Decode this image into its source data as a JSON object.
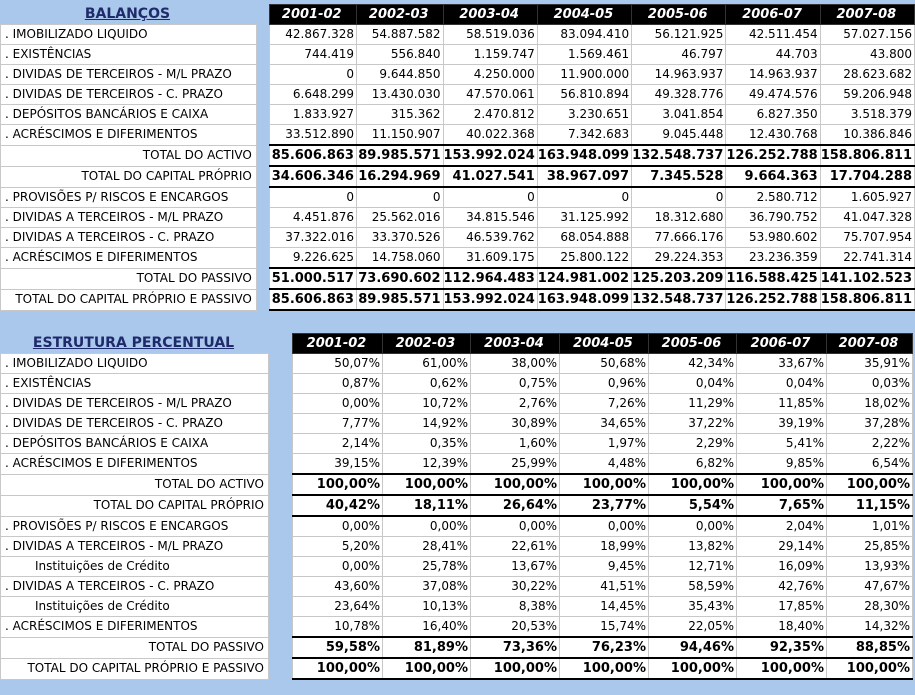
{
  "balancos": {
    "title": "BALANÇOS",
    "years": [
      "2001-02",
      "2002-03",
      "2003-04",
      "2004-05",
      "2005-06",
      "2006-07",
      "2007-08"
    ],
    "rows": [
      {
        "label": ". IMOBILIZADO LIQUIDO",
        "values": [
          "42.867.328",
          "54.887.582",
          "58.519.036",
          "83.094.410",
          "56.121.925",
          "42.511.454",
          "57.027.156"
        ],
        "type": "item"
      },
      {
        "label": ". EXISTÊNCIAS",
        "values": [
          "744.419",
          "556.840",
          "1.159.747",
          "1.569.461",
          "46.797",
          "44.703",
          "43.800"
        ],
        "type": "item"
      },
      {
        "label": ". DIVIDAS DE TERCEIROS - M/L PRAZO",
        "values": [
          "0",
          "9.644.850",
          "4.250.000",
          "11.900.000",
          "14.963.937",
          "14.963.937",
          "28.623.682"
        ],
        "type": "item"
      },
      {
        "label": ". DIVIDAS DE TERCEIROS - C. PRAZO",
        "values": [
          "6.648.299",
          "13.430.030",
          "47.570.061",
          "56.810.894",
          "49.328.776",
          "49.474.576",
          "59.206.948"
        ],
        "type": "item"
      },
      {
        "label": ". DEPÓSITOS BANCÁRIOS E CAIXA",
        "values": [
          "1.833.927",
          "315.362",
          "2.470.812",
          "3.230.651",
          "3.041.854",
          "6.827.350",
          "3.518.379"
        ],
        "type": "item"
      },
      {
        "label": ". ACRÉSCIMOS E DIFERIMENTOS",
        "values": [
          "33.512.890",
          "11.150.907",
          "40.022.368",
          "7.342.683",
          "9.045.448",
          "12.430.768",
          "10.386.846"
        ],
        "type": "item"
      },
      {
        "label": "TOTAL DO ACTIVO",
        "values": [
          "85.606.863",
          "89.985.571",
          "153.992.024",
          "163.948.099",
          "132.548.737",
          "126.252.788",
          "158.806.811"
        ],
        "type": "total"
      },
      {
        "label": "TOTAL DO CAPITAL PRÓPRIO",
        "values": [
          "34.606.346",
          "16.294.969",
          "41.027.541",
          "38.967.097",
          "7.345.528",
          "9.664.363",
          "17.704.288"
        ],
        "type": "total"
      },
      {
        "label": ". PROVISÕES P/ RISCOS E ENCARGOS",
        "values": [
          "0",
          "0",
          "0",
          "0",
          "0",
          "2.580.712",
          "1.605.927"
        ],
        "type": "item"
      },
      {
        "label": ". DIVIDAS A TERCEIROS - M/L PRAZO",
        "values": [
          "4.451.876",
          "25.562.016",
          "34.815.546",
          "31.125.992",
          "18.312.680",
          "36.790.752",
          "41.047.328"
        ],
        "type": "item"
      },
      {
        "label": ". DIVIDAS A TERCEIROS - C. PRAZO",
        "values": [
          "37.322.016",
          "33.370.526",
          "46.539.762",
          "68.054.888",
          "77.666.176",
          "53.980.602",
          "75.707.954"
        ],
        "type": "item"
      },
      {
        "label": ". ACRÉSCIMOS E DIFERIMENTOS",
        "values": [
          "9.226.625",
          "14.758.060",
          "31.609.175",
          "25.800.122",
          "29.224.353",
          "23.236.359",
          "22.741.314"
        ],
        "type": "item"
      },
      {
        "label": "TOTAL DO PASSIVO",
        "values": [
          "51.000.517",
          "73.690.602",
          "112.964.483",
          "124.981.002",
          "125.203.209",
          "116.588.425",
          "141.102.523"
        ],
        "type": "total"
      },
      {
        "label": "TOTAL DO CAPITAL PRÓPRIO E PASSIVO",
        "values": [
          "85.606.863",
          "89.985.571",
          "153.992.024",
          "163.948.099",
          "132.548.737",
          "126.252.788",
          "158.806.811"
        ],
        "type": "total"
      }
    ]
  },
  "estrutura": {
    "title": "ESTRUTURA PERCENTUAL",
    "years": [
      "2001-02",
      "2002-03",
      "2003-04",
      "2004-05",
      "2005-06",
      "2006-07",
      "2007-08"
    ],
    "rows": [
      {
        "label": ". IMOBILIZADO LIQUIDO",
        "values": [
          "50,07%",
          "61,00%",
          "38,00%",
          "50,68%",
          "42,34%",
          "33,67%",
          "35,91%"
        ],
        "type": "item"
      },
      {
        "label": ". EXISTÊNCIAS",
        "values": [
          "0,87%",
          "0,62%",
          "0,75%",
          "0,96%",
          "0,04%",
          "0,04%",
          "0,03%"
        ],
        "type": "item"
      },
      {
        "label": ". DIVIDAS DE TERCEIROS - M/L PRAZO",
        "values": [
          "0,00%",
          "10,72%",
          "2,76%",
          "7,26%",
          "11,29%",
          "11,85%",
          "18,02%"
        ],
        "type": "item"
      },
      {
        "label": ". DIVIDAS DE TERCEIROS - C. PRAZO",
        "values": [
          "7,77%",
          "14,92%",
          "30,89%",
          "34,65%",
          "37,22%",
          "39,19%",
          "37,28%"
        ],
        "type": "item"
      },
      {
        "label": ". DEPÓSITOS BANCÁRIOS E CAIXA",
        "values": [
          "2,14%",
          "0,35%",
          "1,60%",
          "1,97%",
          "2,29%",
          "5,41%",
          "2,22%"
        ],
        "type": "item"
      },
      {
        "label": ". ACRÉSCIMOS E DIFERIMENTOS",
        "values": [
          "39,15%",
          "12,39%",
          "25,99%",
          "4,48%",
          "6,82%",
          "9,85%",
          "6,54%"
        ],
        "type": "item"
      },
      {
        "label": "TOTAL DO ACTIVO",
        "values": [
          "100,00%",
          "100,00%",
          "100,00%",
          "100,00%",
          "100,00%",
          "100,00%",
          "100,00%"
        ],
        "type": "total"
      },
      {
        "label": "TOTAL DO CAPITAL PRÓPRIO",
        "values": [
          "40,42%",
          "18,11%",
          "26,64%",
          "23,77%",
          "5,54%",
          "7,65%",
          "11,15%"
        ],
        "type": "total"
      },
      {
        "label": ". PROVISÕES P/ RISCOS E ENCARGOS",
        "values": [
          "0,00%",
          "0,00%",
          "0,00%",
          "0,00%",
          "0,00%",
          "2,04%",
          "1,01%"
        ],
        "type": "item"
      },
      {
        "label": ". DIVIDAS A TERCEIROS - M/L PRAZO",
        "values": [
          "5,20%",
          "28,41%",
          "22,61%",
          "18,99%",
          "13,82%",
          "29,14%",
          "25,85%"
        ],
        "type": "item"
      },
      {
        "label": "Instituições de Crédito",
        "values": [
          "0,00%",
          "25,78%",
          "13,67%",
          "9,45%",
          "12,71%",
          "16,09%",
          "13,93%"
        ],
        "type": "sub"
      },
      {
        "label": ". DIVIDAS A TERCEIROS - C. PRAZO",
        "values": [
          "43,60%",
          "37,08%",
          "30,22%",
          "41,51%",
          "58,59%",
          "42,76%",
          "47,67%"
        ],
        "type": "item"
      },
      {
        "label": "Instituições de Crédito",
        "values": [
          "23,64%",
          "10,13%",
          "8,38%",
          "14,45%",
          "35,43%",
          "17,85%",
          "28,30%"
        ],
        "type": "sub"
      },
      {
        "label": ". ACRÉSCIMOS E DIFERIMENTOS",
        "values": [
          "10,78%",
          "16,40%",
          "20,53%",
          "15,74%",
          "22,05%",
          "18,40%",
          "14,32%"
        ],
        "type": "item"
      },
      {
        "label": "TOTAL DO PASSIVO",
        "values": [
          "59,58%",
          "81,89%",
          "73,36%",
          "76,23%",
          "94,46%",
          "92,35%",
          "88,85%"
        ],
        "type": "total"
      },
      {
        "label": "TOTAL DO CAPITAL PRÓPRIO E PASSIVO",
        "values": [
          "100,00%",
          "100,00%",
          "100,00%",
          "100,00%",
          "100,00%",
          "100,00%",
          "100,00%"
        ],
        "type": "total"
      }
    ]
  }
}
